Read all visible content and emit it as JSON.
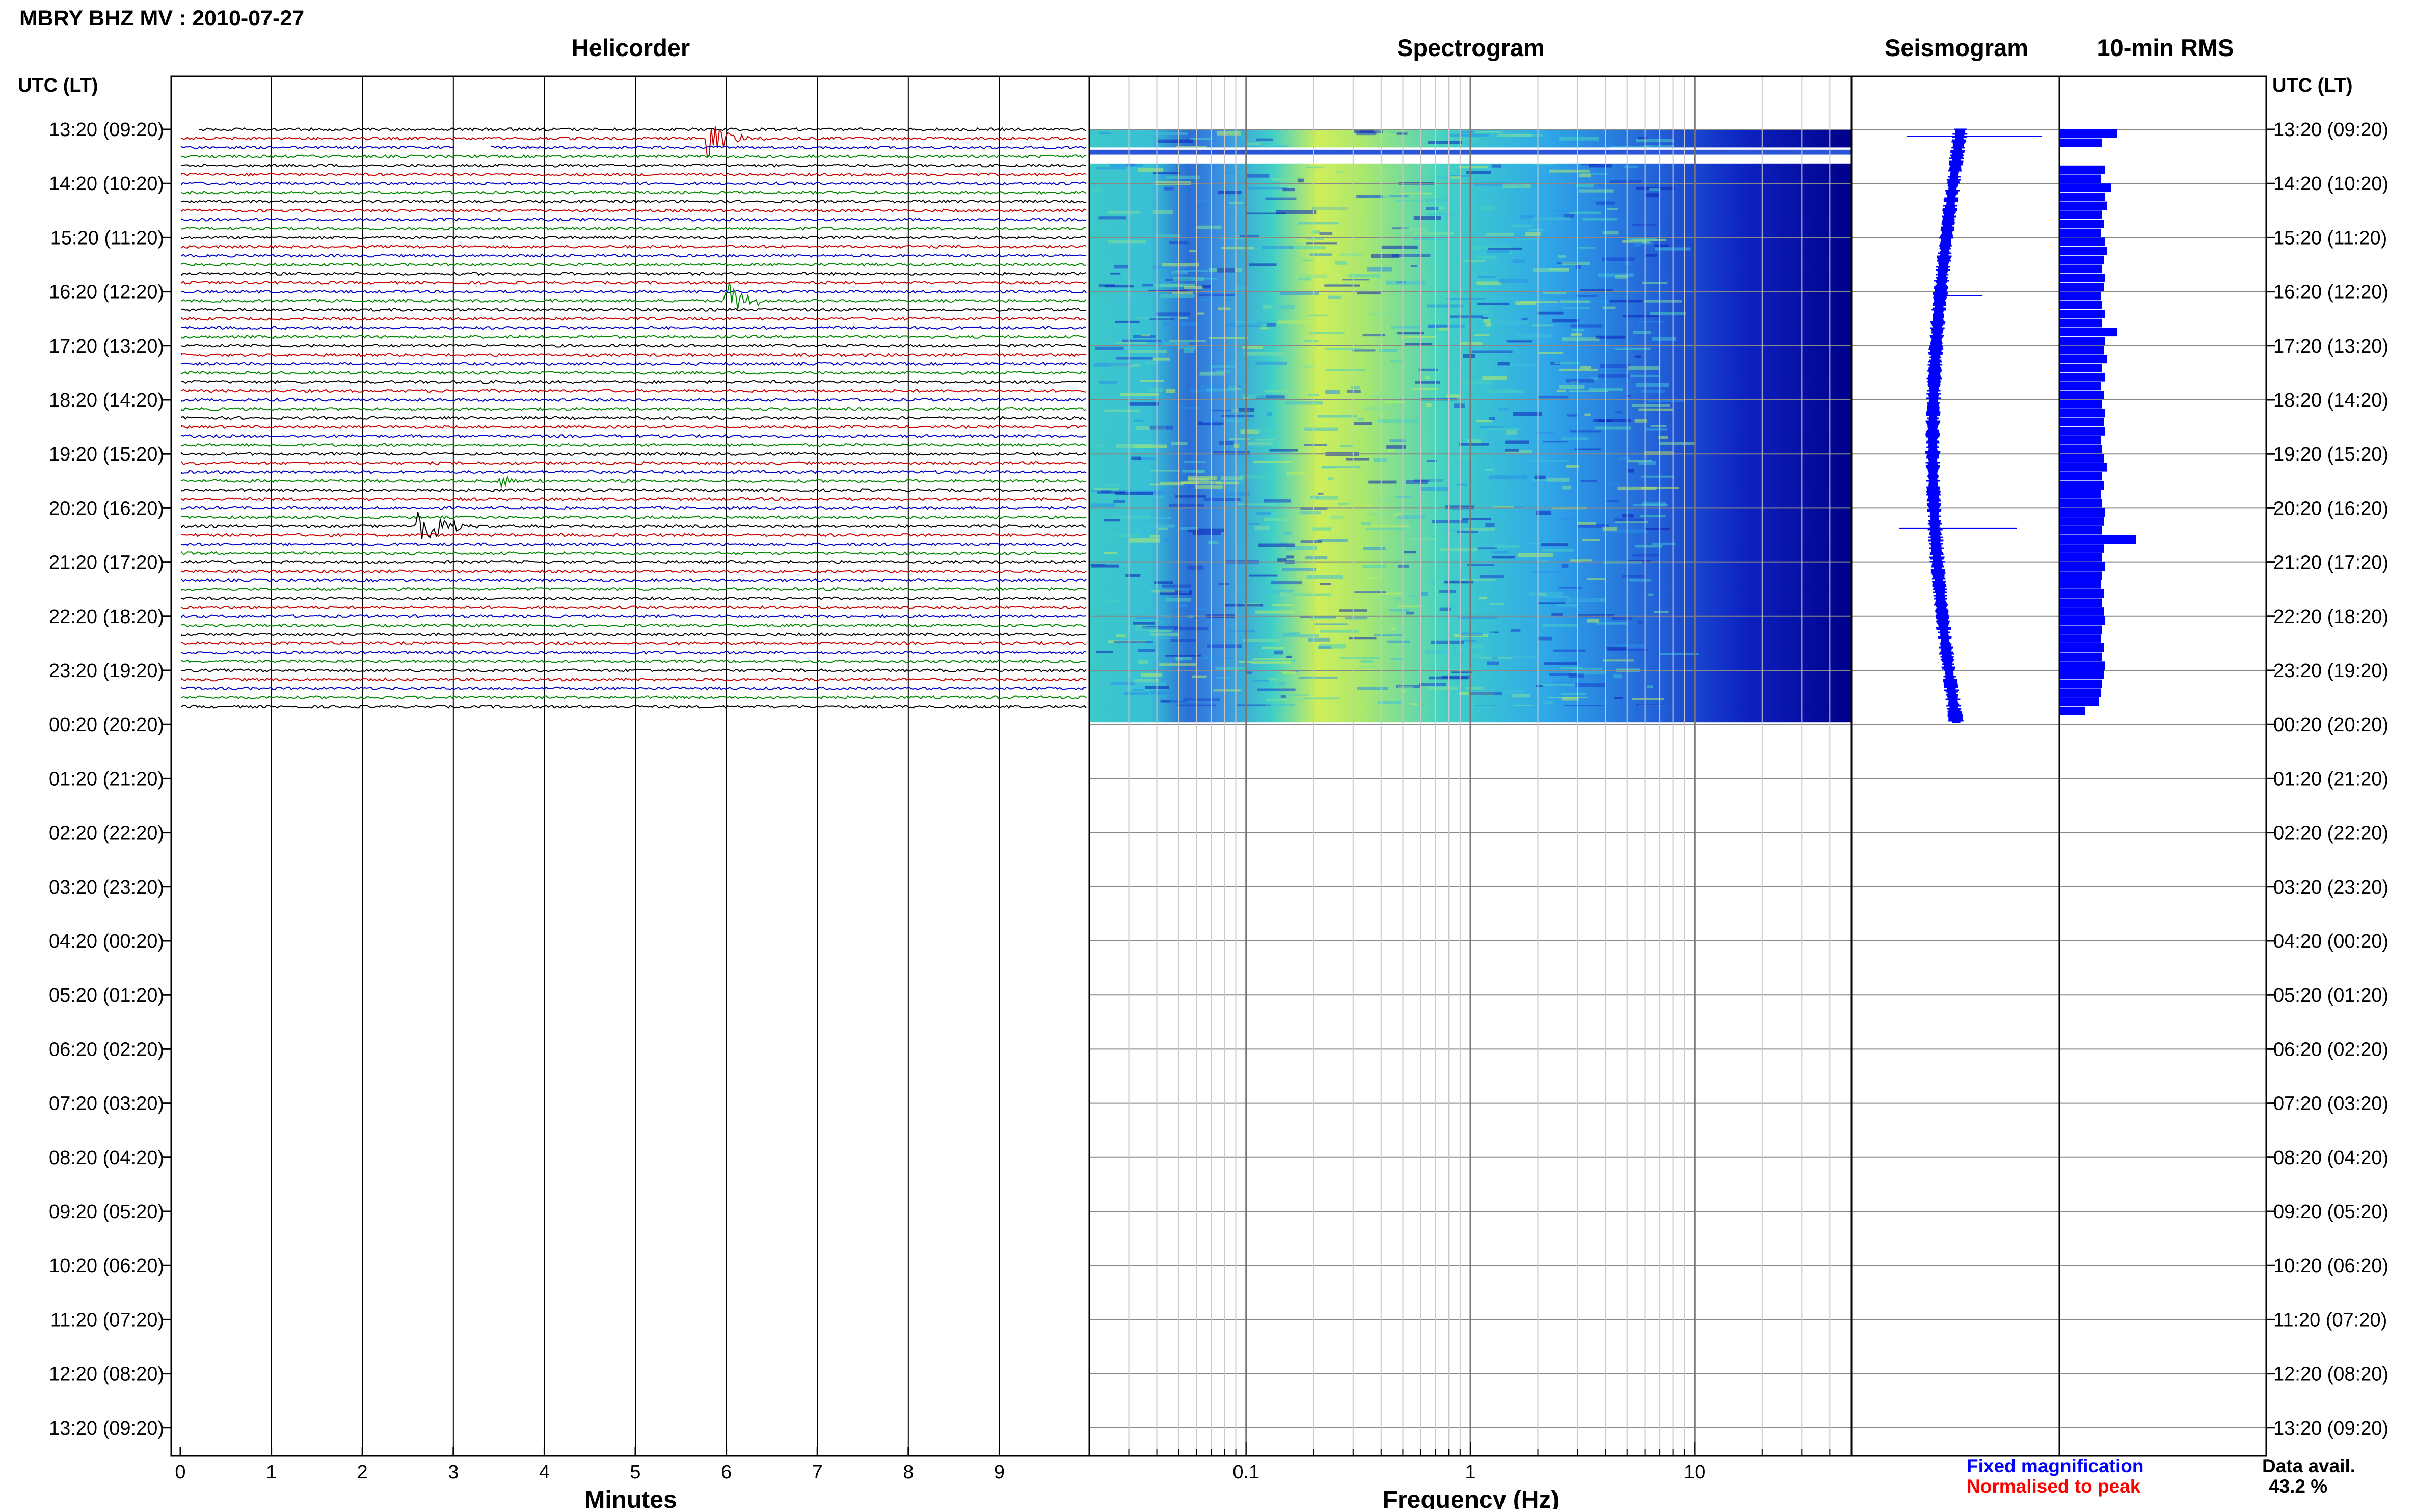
{
  "title": "MBRY BHZ MV : 2010-07-27",
  "axis_headers": {
    "left": "UTC (LT)",
    "right": "UTC (LT)"
  },
  "panels": {
    "helicorder": "Helicorder",
    "spectrogram": "Spectrogram",
    "seismogram": "Seismogram",
    "rms": "10-min RMS"
  },
  "xlabels": {
    "minutes": "Minutes",
    "frequency": "Frequency (Hz)"
  },
  "legend": {
    "fixed": "Fixed magnification",
    "normalised": "Normalised to peak",
    "fixed_color": "#0000ff",
    "normalised_color": "#ff0000"
  },
  "availability": {
    "label": "Data avail.",
    "value": "43.2 %"
  },
  "time_labels": [
    "13:20 (09:20)",
    "14:20 (10:20)",
    "15:20 (11:20)",
    "16:20 (12:20)",
    "17:20 (13:20)",
    "18:20 (14:20)",
    "19:20 (15:20)",
    "20:20 (16:20)",
    "21:20 (17:20)",
    "22:20 (18:20)",
    "23:20 (19:20)",
    "00:20 (20:20)",
    "01:20 (21:20)",
    "02:20 (22:20)",
    "03:20 (23:20)",
    "04:20 (00:20)",
    "05:20 (01:20)",
    "06:20 (02:20)",
    "07:20 (03:20)",
    "08:20 (04:20)",
    "09:20 (05:20)",
    "10:20 (06:20)",
    "11:20 (07:20)",
    "12:20 (08:20)",
    "13:20 (09:20)"
  ],
  "minute_ticks": [
    "0",
    "1",
    "2",
    "3",
    "4",
    "5",
    "6",
    "7",
    "8",
    "9"
  ],
  "freq_ticks": [
    "0.1",
    "1",
    "10"
  ],
  "trace_colors": [
    "#000000",
    "#cc0000",
    "#0000cc",
    "#008800"
  ],
  "chart_data": {
    "type": "helicorder",
    "title": "MBRY BHZ MV : 2010-07-27",
    "xlabel": "Minutes",
    "xlim": [
      0,
      10
    ],
    "rows_per_hour": 6,
    "data_hours": 11,
    "total_hours": 24,
    "events": [
      {
        "time": "13:25",
        "minute": 5.8,
        "amplitude": "large"
      },
      {
        "time": "16:25",
        "minute": 6.0,
        "amplitude": "large"
      },
      {
        "time": "20:35",
        "minute": 2.6,
        "amplitude": "very large"
      },
      {
        "time": "19:45",
        "minute": 3.5,
        "amplitude": "moderate"
      }
    ],
    "gaps": [
      {
        "start": "13:30",
        "minute_from": 3.0,
        "minute_to": 3.4
      }
    ],
    "spectrogram": {
      "xlabel": "Frequency (Hz)",
      "xscale": "log",
      "xlim": [
        0.02,
        50
      ],
      "peak_band_hz": [
        0.2,
        0.5
      ],
      "gap": [
        "13:50",
        "14:15"
      ]
    },
    "rms": {
      "unit": "relative",
      "values": [
        0.38,
        0.28,
        0.27,
        0.29,
        0.3,
        0.27,
        0.34,
        0.3,
        0.31,
        0.28,
        0.29,
        0.27,
        0.3,
        0.31,
        0.29,
        0.28,
        0.3,
        0.29,
        0.27,
        0.28,
        0.3,
        0.28,
        0.38,
        0.3,
        0.29,
        0.31,
        0.28,
        0.3,
        0.27,
        0.29,
        0.28,
        0.3,
        0.29,
        0.3,
        0.27,
        0.28,
        0.29,
        0.31,
        0.28,
        0.29,
        0.27,
        0.28,
        0.3,
        0.29,
        0.28,
        0.5,
        0.29,
        0.28,
        0.3,
        0.28,
        0.27,
        0.29,
        0.28,
        0.29,
        0.3,
        0.28,
        0.27,
        0.29,
        0.28,
        0.3,
        0.29,
        0.28,
        0.27,
        0.26,
        0.17
      ]
    },
    "data_availability_percent": 43.2
  }
}
